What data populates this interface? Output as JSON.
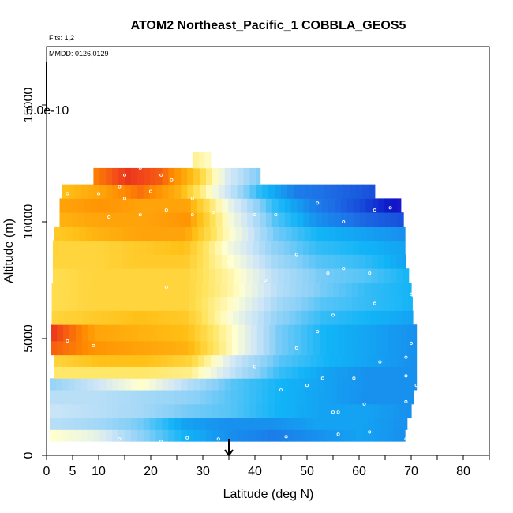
{
  "chart_data": {
    "type": "heatmap",
    "title": "ATOM2 Northeast_Pacific_1 COBBLA_GEOS5",
    "subtitle_flights": "Flts: 1,2",
    "subtitle_dates": "MMDD: 0126,0129",
    "xlabel": "Latitude (deg N)",
    "ylabel": "Altitude (m)",
    "colorbar_label": "0.0e-10",
    "xlim": [
      0,
      85
    ],
    "ylim": [
      0,
      17500
    ],
    "x_ticks": [
      0,
      5,
      10,
      20,
      30,
      40,
      50,
      60,
      70,
      80
    ],
    "x_tick_labels": [
      "0",
      "5",
      "10",
      "20",
      "30",
      "40",
      "50",
      "60",
      "70",
      "80"
    ],
    "x_minor_ticks": [
      15,
      25,
      35,
      45,
      55,
      65,
      75,
      85
    ],
    "y_ticks": [
      0,
      5000,
      10000,
      15000
    ],
    "y_tick_labels": [
      "0",
      "5000",
      "10000",
      "15000"
    ],
    "arrow_marker_latitude": 35,
    "colors": {
      "ramp": [
        "#7a1fd6",
        "#0c16c8",
        "#1e6fe6",
        "#11b4f7",
        "#8ad0f7",
        "#cfe6f7",
        "#ffffd0",
        "#ffe35a",
        "#ffbf15",
        "#ff8a00",
        "#f0401c",
        "#c7061b"
      ],
      "flight_points": "#ffffff"
    },
    "rows": [
      {
        "alt": [
          600,
          1100
        ],
        "lat": [
          0.6,
          68.8
        ],
        "v": [
          0.1,
          0.0,
          -0.25,
          -0.45,
          -0.55,
          -0.6,
          -0.55,
          -0.5,
          -0.55
        ]
      },
      {
        "alt": [
          1100,
          1600
        ],
        "lat": [
          0.6,
          69.2
        ],
        "v": [
          -0.15,
          -0.2,
          -0.3,
          -0.5,
          -0.55,
          -0.55,
          -0.5,
          -0.5,
          -0.55
        ]
      },
      {
        "alt": [
          1600,
          2200
        ],
        "lat": [
          0.6,
          70.0
        ],
        "v": [
          -0.1,
          -0.15,
          -0.2,
          -0.3,
          -0.35,
          -0.45,
          -0.5,
          -0.5,
          -0.55
        ]
      },
      {
        "alt": [
          2200,
          2800
        ],
        "lat": [
          0.6,
          70.5
        ],
        "v": [
          -0.15,
          -0.15,
          -0.2,
          -0.25,
          -0.35,
          -0.45,
          -0.5,
          -0.55,
          -0.55
        ]
      },
      {
        "alt": [
          2800,
          3300
        ],
        "lat": [
          0.6,
          71.0
        ],
        "v": [
          -0.25,
          -0.1,
          0.1,
          -0.15,
          -0.35,
          -0.45,
          -0.5,
          -0.55,
          -0.55
        ]
      },
      {
        "alt": [
          3300,
          3800
        ],
        "lat": [
          1.5,
          71.0
        ],
        "v": [
          0.25,
          0.25,
          0.25,
          0.2,
          -0.15,
          -0.4,
          -0.5,
          -0.55,
          -0.55
        ]
      },
      {
        "alt": [
          3800,
          4300
        ],
        "lat": [
          1.5,
          71.0
        ],
        "v": [
          0.35,
          0.45,
          0.45,
          0.35,
          -0.1,
          -0.35,
          -0.45,
          -0.5,
          -0.55
        ]
      },
      {
        "alt": [
          4300,
          4900
        ],
        "lat": [
          0.8,
          71.0
        ],
        "v": [
          0.75,
          0.6,
          0.55,
          0.5,
          0.1,
          -0.3,
          -0.45,
          -0.5,
          -0.55
        ]
      },
      {
        "alt": [
          4900,
          5600
        ],
        "lat": [
          0.8,
          71.0
        ],
        "v": [
          0.85,
          0.55,
          0.5,
          0.45,
          0.1,
          -0.3,
          -0.45,
          -0.5,
          -0.55
        ]
      },
      {
        "alt": [
          5600,
          6200
        ],
        "lat": [
          1.0,
          70.3
        ],
        "v": [
          0.35,
          0.4,
          0.45,
          0.4,
          0.05,
          -0.25,
          -0.4,
          -0.45,
          -0.5
        ]
      },
      {
        "alt": [
          6200,
          6800
        ],
        "lat": [
          1.0,
          70.2
        ],
        "v": [
          0.3,
          0.35,
          0.35,
          0.35,
          0.1,
          -0.2,
          -0.35,
          -0.4,
          -0.45
        ]
      },
      {
        "alt": [
          6800,
          7400
        ],
        "lat": [
          1.0,
          70.0
        ],
        "v": [
          0.3,
          0.35,
          0.35,
          0.35,
          0.15,
          -0.15,
          -0.3,
          -0.4,
          -0.45
        ]
      },
      {
        "alt": [
          7400,
          8000
        ],
        "lat": [
          1.2,
          69.5
        ],
        "v": [
          0.3,
          0.35,
          0.35,
          0.35,
          0.15,
          -0.15,
          -0.3,
          -0.35,
          -0.45
        ]
      },
      {
        "alt": [
          8000,
          8600
        ],
        "lat": [
          1.2,
          69.0
        ],
        "v": [
          0.35,
          0.35,
          0.4,
          0.4,
          0.1,
          -0.2,
          -0.35,
          -0.4,
          -0.5
        ]
      },
      {
        "alt": [
          8600,
          9200
        ],
        "lat": [
          1.2,
          68.8
        ],
        "v": [
          0.35,
          0.35,
          0.4,
          0.45,
          0.05,
          -0.25,
          -0.4,
          -0.45,
          -0.5
        ]
      },
      {
        "alt": [
          9200,
          9800
        ],
        "lat": [
          1.5,
          68.8
        ],
        "v": [
          0.4,
          0.5,
          0.55,
          0.55,
          0.1,
          -0.3,
          -0.45,
          -0.5,
          -0.55
        ]
      },
      {
        "alt": [
          9800,
          10400
        ],
        "lat": [
          2.5,
          68.5
        ],
        "v": [
          0.5,
          0.55,
          0.55,
          0.6,
          0.05,
          -0.35,
          -0.55,
          -0.65,
          -0.7
        ]
      },
      {
        "alt": [
          10400,
          11000
        ],
        "lat": [
          2.5,
          68.0
        ],
        "v": [
          0.55,
          0.6,
          0.55,
          0.55,
          0.0,
          -0.4,
          -0.6,
          -0.7,
          -0.85
        ]
      },
      {
        "alt": [
          11000,
          11600
        ],
        "lat": [
          3.0,
          63.0
        ],
        "v": [
          0.45,
          0.55,
          0.7,
          0.5,
          0.0,
          -0.4,
          -0.6,
          -0.65,
          -0.7
        ]
      },
      {
        "alt": [
          11600,
          12300
        ],
        "lat": [
          9.0,
          41.0
        ],
        "v": [
          0.65,
          0.85,
          0.75,
          0.45,
          -0.05,
          -0.3
        ]
      },
      {
        "alt": [
          12300,
          13000
        ],
        "lat": [
          28.0,
          31.5
        ],
        "v": [
          0.2,
          0.1
        ]
      }
    ],
    "points": [
      [
        14,
        700
      ],
      [
        22,
        600
      ],
      [
        27,
        750
      ],
      [
        33,
        700
      ],
      [
        46,
        800
      ],
      [
        56,
        900
      ],
      [
        62,
        1000
      ],
      [
        69,
        700
      ],
      [
        55,
        1850
      ],
      [
        56,
        1850
      ],
      [
        61,
        2200
      ],
      [
        69,
        2300
      ],
      [
        71,
        2500
      ],
      [
        45,
        2800
      ],
      [
        50,
        3000
      ],
      [
        71,
        3000
      ],
      [
        53,
        3300
      ],
      [
        59,
        3300
      ],
      [
        69,
        3400
      ],
      [
        40,
        3800
      ],
      [
        64,
        4000
      ],
      [
        69,
        4200
      ],
      [
        48,
        4600
      ],
      [
        70,
        4800
      ],
      [
        4,
        4900
      ],
      [
        9,
        4700
      ],
      [
        52,
        5300
      ],
      [
        55,
        6000
      ],
      [
        63,
        6500
      ],
      [
        70,
        6900
      ],
      [
        23,
        7200
      ],
      [
        42,
        7500
      ],
      [
        54,
        7800
      ],
      [
        57,
        8000
      ],
      [
        62,
        7800
      ],
      [
        35,
        8300
      ],
      [
        48,
        8600
      ],
      [
        12,
        10200
      ],
      [
        18,
        10300
      ],
      [
        23,
        10500
      ],
      [
        28,
        10300
      ],
      [
        32,
        10400
      ],
      [
        40,
        10300
      ],
      [
        44,
        10300
      ],
      [
        52,
        10800
      ],
      [
        57,
        10000
      ],
      [
        63,
        10500
      ],
      [
        66,
        10600
      ],
      [
        4,
        11200
      ],
      [
        10,
        11200
      ],
      [
        15,
        11000
      ],
      [
        20,
        11300
      ],
      [
        24,
        11800
      ],
      [
        28,
        11000
      ],
      [
        15,
        12000
      ],
      [
        18,
        12300
      ],
      [
        22,
        12000
      ],
      [
        14,
        11500
      ]
    ]
  }
}
